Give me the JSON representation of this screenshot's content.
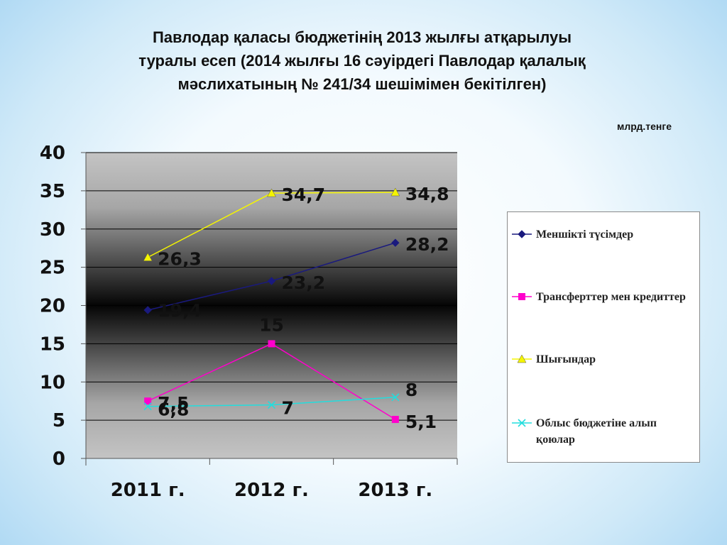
{
  "title": {
    "line1": "Павлодар қаласы бюджетінің 2013 жылғы  атқарылуы",
    "line2": "туралы есеп (2014 жылғы 16 сәуірдегі Павлодар қалалық",
    "line3": "мәслихатының № 241/34 шешімімен бекітілген)"
  },
  "unit": "млрд.тенге",
  "chart_data": {
    "type": "line",
    "categories": [
      "2011 г.",
      "2012 г.",
      "2013 г."
    ],
    "ylim": [
      0,
      40
    ],
    "yticks": [
      0,
      5,
      10,
      15,
      20,
      25,
      30,
      35,
      40
    ],
    "grid": true,
    "legend_position": "right",
    "series": [
      {
        "name": "Меншікті түсімдер",
        "values": [
          19.4,
          23.2,
          28.2
        ],
        "labels": [
          "19,4",
          "23,2",
          "28,2"
        ],
        "color": "#1a1a7e",
        "marker": "diamond"
      },
      {
        "name": "Трансферттер мен кредиттер",
        "values": [
          7.5,
          15,
          5.1
        ],
        "labels": [
          "7,5",
          "15",
          "5,1"
        ],
        "color": "#ff00cc",
        "marker": "square"
      },
      {
        "name": "Шығындар",
        "values": [
          26.3,
          34.7,
          34.8
        ],
        "labels": [
          "26,3",
          "34,7",
          "34,8"
        ],
        "color": "#f5f500",
        "marker": "triangle"
      },
      {
        "name": "Облыс бюджетіне алып қоюлар",
        "values": [
          6.8,
          7,
          8
        ],
        "labels": [
          "6,8",
          "7",
          "8"
        ],
        "color": "#22dddd",
        "marker": "x"
      }
    ]
  }
}
